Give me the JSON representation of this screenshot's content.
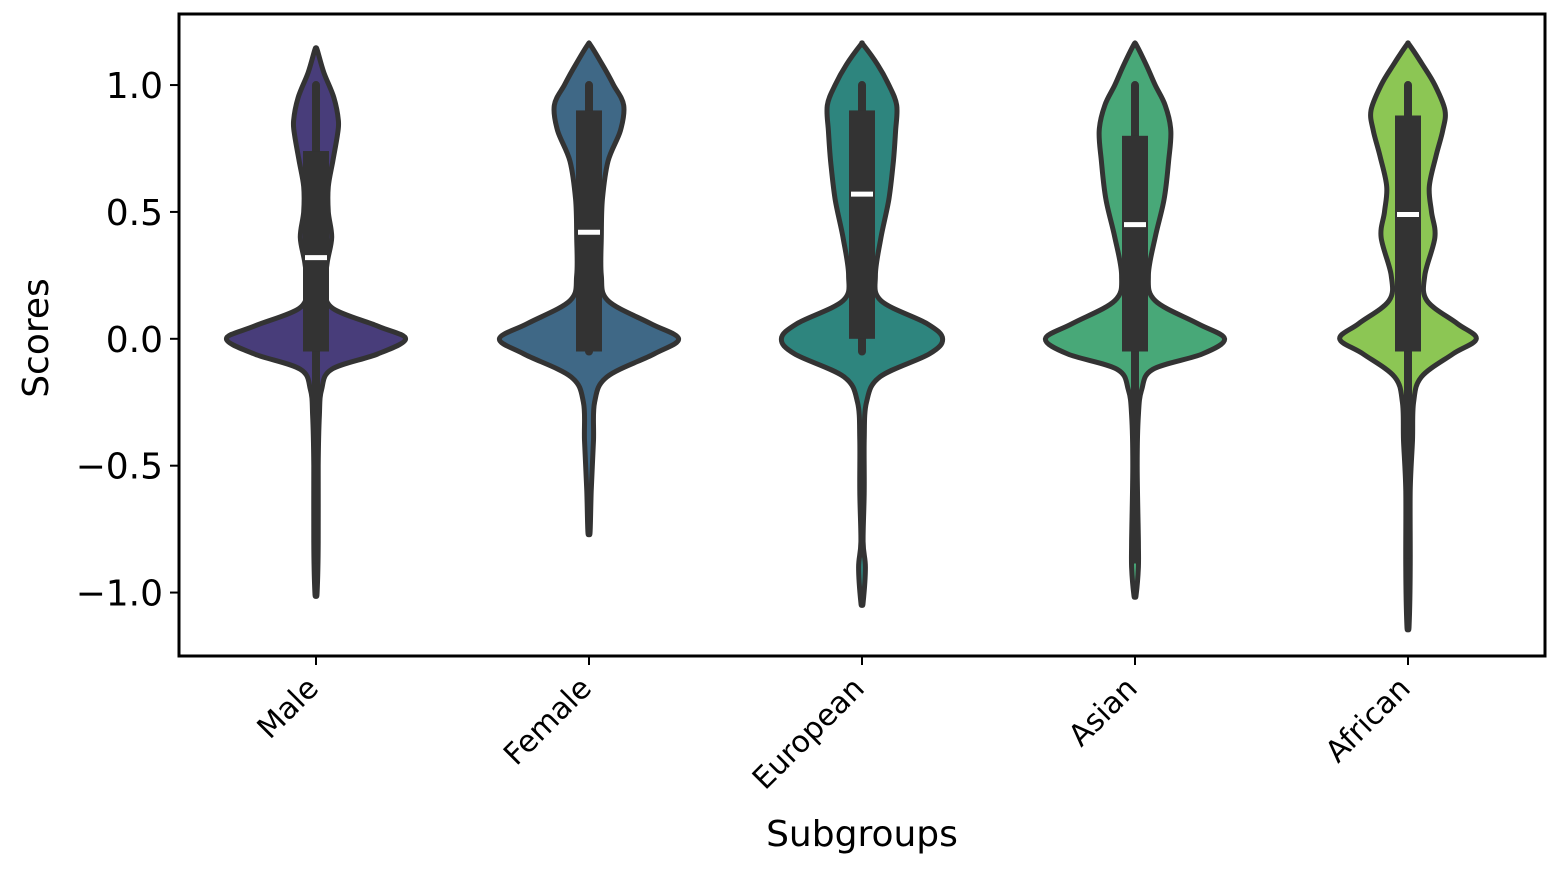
{
  "chart_data": {
    "type": "violin",
    "title": "",
    "xlabel": "Subgroups",
    "ylabel": "Scores",
    "categories": [
      "Male",
      "Female",
      "European",
      "Asian",
      "African"
    ],
    "y_ticks": [
      1.0,
      0.5,
      0.0,
      -0.5,
      -1.0
    ],
    "y_tick_labels": [
      "1.0",
      "0.5",
      "0.0",
      "−0.5",
      "−1.0"
    ],
    "ylim": [
      -1.25,
      1.28
    ],
    "grid": false,
    "legend": "none",
    "colors": [
      "#483d7a",
      "#3f6886",
      "#2e857e",
      "#48a878",
      "#8cc654"
    ],
    "edge_color": "#333333",
    "median_color": "#ffffff",
    "series": [
      {
        "category": "Male",
        "whisker": [
          -0.87,
          1.0
        ],
        "q1": -0.05,
        "median": 0.32,
        "q3": 0.74,
        "extent": [
          -1.0,
          1.14
        ],
        "density": [
          [
            -1.0,
            0.01
          ],
          [
            -0.8,
            0.02
          ],
          [
            -0.5,
            0.02
          ],
          [
            -0.3,
            0.03
          ],
          [
            -0.2,
            0.05
          ],
          [
            -0.12,
            0.14
          ],
          [
            -0.06,
            0.55
          ],
          [
            0.0,
            0.8
          ],
          [
            0.05,
            0.55
          ],
          [
            0.12,
            0.15
          ],
          [
            0.2,
            0.08
          ],
          [
            0.3,
            0.1
          ],
          [
            0.4,
            0.14
          ],
          [
            0.5,
            0.11
          ],
          [
            0.6,
            0.11
          ],
          [
            0.7,
            0.15
          ],
          [
            0.8,
            0.19
          ],
          [
            0.86,
            0.2
          ],
          [
            0.95,
            0.16
          ],
          [
            1.05,
            0.07
          ],
          [
            1.14,
            0.01
          ]
        ]
      },
      {
        "category": "Female",
        "whisker": [
          -0.05,
          1.0
        ],
        "q1": -0.05,
        "median": 0.42,
        "q3": 0.9,
        "extent": [
          -0.76,
          1.16
        ],
        "density": [
          [
            -0.76,
            0.01
          ],
          [
            -0.6,
            0.02
          ],
          [
            -0.4,
            0.04
          ],
          [
            -0.25,
            0.05
          ],
          [
            -0.15,
            0.16
          ],
          [
            -0.06,
            0.58
          ],
          [
            0.0,
            0.8
          ],
          [
            0.06,
            0.55
          ],
          [
            0.15,
            0.17
          ],
          [
            0.25,
            0.11
          ],
          [
            0.4,
            0.11
          ],
          [
            0.55,
            0.12
          ],
          [
            0.7,
            0.17
          ],
          [
            0.82,
            0.28
          ],
          [
            0.92,
            0.31
          ],
          [
            1.0,
            0.22
          ],
          [
            1.08,
            0.12
          ],
          [
            1.16,
            0.01
          ]
        ]
      },
      {
        "category": "European",
        "whisker": [
          -0.05,
          1.0
        ],
        "q1": 0.0,
        "median": 0.57,
        "q3": 0.9,
        "extent": [
          -1.04,
          1.16
        ],
        "density": [
          [
            -1.04,
            0.01
          ],
          [
            -0.9,
            0.03
          ],
          [
            -0.8,
            0.01
          ],
          [
            -0.6,
            0.02
          ],
          [
            -0.4,
            0.02
          ],
          [
            -0.25,
            0.04
          ],
          [
            -0.15,
            0.16
          ],
          [
            -0.06,
            0.6
          ],
          [
            0.0,
            0.72
          ],
          [
            0.06,
            0.58
          ],
          [
            0.15,
            0.17
          ],
          [
            0.25,
            0.12
          ],
          [
            0.4,
            0.17
          ],
          [
            0.55,
            0.24
          ],
          [
            0.7,
            0.28
          ],
          [
            0.82,
            0.3
          ],
          [
            0.92,
            0.31
          ],
          [
            1.0,
            0.24
          ],
          [
            1.08,
            0.14
          ],
          [
            1.16,
            0.01
          ]
        ]
      },
      {
        "category": "Asian",
        "whisker": [
          -0.87,
          1.0
        ],
        "q1": -0.05,
        "median": 0.45,
        "q3": 0.8,
        "extent": [
          -1.01,
          1.16
        ],
        "density": [
          [
            -1.01,
            0.01
          ],
          [
            -0.9,
            0.03
          ],
          [
            -0.8,
            0.03
          ],
          [
            -0.5,
            0.02
          ],
          [
            -0.3,
            0.03
          ],
          [
            -0.2,
            0.06
          ],
          [
            -0.12,
            0.16
          ],
          [
            -0.06,
            0.6
          ],
          [
            0.0,
            0.8
          ],
          [
            0.06,
            0.56
          ],
          [
            0.15,
            0.18
          ],
          [
            0.25,
            0.12
          ],
          [
            0.4,
            0.18
          ],
          [
            0.55,
            0.26
          ],
          [
            0.7,
            0.3
          ],
          [
            0.82,
            0.32
          ],
          [
            0.92,
            0.27
          ],
          [
            1.0,
            0.18
          ],
          [
            1.08,
            0.1
          ],
          [
            1.16,
            0.01
          ]
        ]
      },
      {
        "category": "African",
        "whisker": [
          -0.85,
          1.0
        ],
        "q1": -0.05,
        "median": 0.49,
        "q3": 0.88,
        "extent": [
          -1.13,
          1.16
        ],
        "density": [
          [
            -1.13,
            0.01
          ],
          [
            -0.9,
            0.02
          ],
          [
            -0.6,
            0.02
          ],
          [
            -0.4,
            0.04
          ],
          [
            -0.25,
            0.05
          ],
          [
            -0.15,
            0.12
          ],
          [
            -0.06,
            0.4
          ],
          [
            0.0,
            0.61
          ],
          [
            0.06,
            0.44
          ],
          [
            0.15,
            0.17
          ],
          [
            0.25,
            0.15
          ],
          [
            0.4,
            0.24
          ],
          [
            0.5,
            0.21
          ],
          [
            0.6,
            0.19
          ],
          [
            0.72,
            0.25
          ],
          [
            0.82,
            0.31
          ],
          [
            0.9,
            0.33
          ],
          [
            1.0,
            0.24
          ],
          [
            1.08,
            0.13
          ],
          [
            1.16,
            0.01
          ]
        ]
      }
    ]
  }
}
